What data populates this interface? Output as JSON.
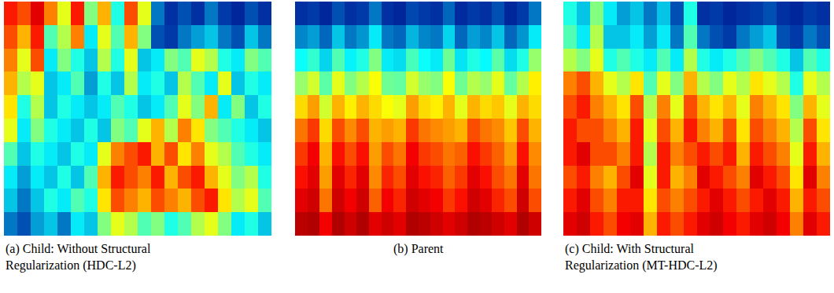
{
  "chart_data": [
    {
      "type": "heatmap",
      "title": "(a) Child: Without Structural Regularization (HDC-L2)",
      "tick_labels": false,
      "color": "Jet",
      "zlim": [
        0,
        1
      ],
      "cells": [
        [
          0.85,
          0.8,
          0.9,
          0.75,
          0.6,
          0.85,
          0.5,
          0.7,
          0.4,
          0.8,
          0.6,
          0.2,
          0.1,
          0.15,
          0.1,
          0.2,
          0.12,
          0.08,
          0.15,
          0.1
        ],
        [
          0.8,
          0.7,
          0.85,
          0.45,
          0.55,
          0.75,
          0.35,
          0.6,
          0.45,
          0.7,
          0.5,
          0.15,
          0.12,
          0.2,
          0.25,
          0.3,
          0.2,
          0.15,
          0.3,
          0.2
        ],
        [
          0.75,
          0.6,
          0.8,
          0.35,
          0.5,
          0.4,
          0.3,
          0.55,
          0.4,
          0.6,
          0.3,
          0.35,
          0.5,
          0.45,
          0.6,
          0.55,
          0.4,
          0.35,
          0.5,
          0.45
        ],
        [
          0.7,
          0.55,
          0.6,
          0.3,
          0.35,
          0.45,
          0.25,
          0.4,
          0.3,
          0.55,
          0.35,
          0.4,
          0.3,
          0.55,
          0.45,
          0.35,
          0.6,
          0.3,
          0.4,
          0.35
        ],
        [
          0.65,
          0.4,
          0.55,
          0.3,
          0.4,
          0.35,
          0.3,
          0.35,
          0.45,
          0.4,
          0.3,
          0.35,
          0.45,
          0.6,
          0.5,
          0.7,
          0.35,
          0.5,
          0.3,
          0.4
        ],
        [
          0.6,
          0.35,
          0.5,
          0.4,
          0.35,
          0.3,
          0.4,
          0.3,
          0.5,
          0.45,
          0.6,
          0.7,
          0.55,
          0.75,
          0.65,
          0.5,
          0.45,
          0.4,
          0.35,
          0.3
        ],
        [
          0.45,
          0.3,
          0.4,
          0.35,
          0.3,
          0.4,
          0.35,
          0.6,
          0.75,
          0.8,
          0.85,
          0.7,
          0.8,
          0.65,
          0.75,
          0.6,
          0.55,
          0.45,
          0.4,
          0.35
        ],
        [
          0.35,
          0.25,
          0.35,
          0.3,
          0.4,
          0.3,
          0.45,
          0.7,
          0.85,
          0.8,
          0.75,
          0.85,
          0.7,
          0.8,
          0.85,
          0.7,
          0.6,
          0.5,
          0.55,
          0.4
        ],
        [
          0.3,
          0.2,
          0.3,
          0.4,
          0.35,
          0.45,
          0.4,
          0.65,
          0.8,
          0.75,
          0.7,
          0.8,
          0.75,
          0.7,
          0.8,
          0.85,
          0.65,
          0.55,
          0.6,
          0.45
        ],
        [
          0.2,
          0.15,
          0.25,
          0.3,
          0.2,
          0.35,
          0.3,
          0.5,
          0.6,
          0.55,
          0.45,
          0.5,
          0.4,
          0.45,
          0.55,
          0.6,
          0.5,
          0.35,
          0.4,
          0.3
        ]
      ]
    },
    {
      "type": "heatmap",
      "title": "(b) Parent",
      "tick_labels": false,
      "color": "Jet",
      "zlim": [
        0,
        1
      ],
      "cells": [
        [
          0.1,
          0.12,
          0.08,
          0.15,
          0.1,
          0.12,
          0.2,
          0.1,
          0.08,
          0.14,
          0.12,
          0.1,
          0.18,
          0.09,
          0.12,
          0.1,
          0.15,
          0.08,
          0.12,
          0.2
        ],
        [
          0.22,
          0.25,
          0.18,
          0.3,
          0.2,
          0.24,
          0.35,
          0.2,
          0.18,
          0.28,
          0.22,
          0.2,
          0.32,
          0.18,
          0.25,
          0.22,
          0.3,
          0.18,
          0.24,
          0.35
        ],
        [
          0.38,
          0.42,
          0.32,
          0.45,
          0.36,
          0.4,
          0.5,
          0.35,
          0.33,
          0.44,
          0.38,
          0.35,
          0.48,
          0.34,
          0.4,
          0.37,
          0.46,
          0.33,
          0.4,
          0.52
        ],
        [
          0.52,
          0.58,
          0.46,
          0.6,
          0.5,
          0.55,
          0.62,
          0.48,
          0.47,
          0.58,
          0.52,
          0.5,
          0.62,
          0.48,
          0.55,
          0.52,
          0.6,
          0.47,
          0.55,
          0.64
        ],
        [
          0.66,
          0.72,
          0.58,
          0.7,
          0.64,
          0.7,
          0.66,
          0.62,
          0.6,
          0.72,
          0.66,
          0.64,
          0.7,
          0.6,
          0.7,
          0.66,
          0.68,
          0.6,
          0.7,
          0.66
        ],
        [
          0.76,
          0.82,
          0.66,
          0.8,
          0.74,
          0.8,
          0.7,
          0.72,
          0.7,
          0.82,
          0.76,
          0.74,
          0.72,
          0.7,
          0.8,
          0.76,
          0.74,
          0.68,
          0.8,
          0.7
        ],
        [
          0.82,
          0.88,
          0.7,
          0.86,
          0.8,
          0.86,
          0.72,
          0.8,
          0.76,
          0.88,
          0.82,
          0.8,
          0.76,
          0.78,
          0.86,
          0.82,
          0.78,
          0.72,
          0.86,
          0.74
        ],
        [
          0.86,
          0.9,
          0.72,
          0.9,
          0.84,
          0.9,
          0.74,
          0.84,
          0.8,
          0.9,
          0.86,
          0.84,
          0.78,
          0.82,
          0.9,
          0.86,
          0.8,
          0.76,
          0.9,
          0.76
        ],
        [
          0.9,
          0.92,
          0.76,
          0.92,
          0.88,
          0.92,
          0.78,
          0.88,
          0.84,
          0.92,
          0.9,
          0.88,
          0.82,
          0.86,
          0.92,
          0.9,
          0.84,
          0.8,
          0.92,
          0.8
        ],
        [
          0.94,
          0.95,
          0.88,
          0.95,
          0.92,
          0.95,
          0.9,
          0.92,
          0.9,
          0.95,
          0.94,
          0.92,
          0.9,
          0.92,
          0.95,
          0.94,
          0.92,
          0.9,
          0.95,
          0.92
        ]
      ]
    },
    {
      "type": "heatmap",
      "title": "(c) Child: With Structural Regularization (MT-HDC-L2)",
      "tick_labels": false,
      "color": "Jet",
      "zlim": [
        0,
        1
      ],
      "cells": [
        [
          0.4,
          0.3,
          0.5,
          0.35,
          0.25,
          0.3,
          0.2,
          0.3,
          0.15,
          0.4,
          0.1,
          0.12,
          0.08,
          0.1,
          0.12,
          0.15,
          0.1,
          0.08,
          0.12,
          0.1
        ],
        [
          0.45,
          0.35,
          0.55,
          0.3,
          0.3,
          0.35,
          0.25,
          0.35,
          0.2,
          0.45,
          0.2,
          0.15,
          0.12,
          0.2,
          0.25,
          0.3,
          0.15,
          0.12,
          0.2,
          0.15
        ],
        [
          0.55,
          0.5,
          0.6,
          0.4,
          0.45,
          0.4,
          0.35,
          0.45,
          0.35,
          0.55,
          0.4,
          0.35,
          0.4,
          0.45,
          0.5,
          0.45,
          0.4,
          0.3,
          0.45,
          0.4
        ],
        [
          0.75,
          0.8,
          0.7,
          0.6,
          0.55,
          0.65,
          0.45,
          0.6,
          0.5,
          0.7,
          0.55,
          0.5,
          0.6,
          0.55,
          0.65,
          0.6,
          0.55,
          0.4,
          0.6,
          0.55
        ],
        [
          0.8,
          0.85,
          0.75,
          0.7,
          0.65,
          0.8,
          0.55,
          0.75,
          0.6,
          0.8,
          0.7,
          0.65,
          0.7,
          0.6,
          0.75,
          0.7,
          0.65,
          0.5,
          0.7,
          0.6
        ],
        [
          0.85,
          0.8,
          0.8,
          0.75,
          0.7,
          0.85,
          0.6,
          0.8,
          0.7,
          0.85,
          0.75,
          0.7,
          0.8,
          0.65,
          0.8,
          0.75,
          0.7,
          0.55,
          0.8,
          0.65
        ],
        [
          0.85,
          0.9,
          0.8,
          0.8,
          0.75,
          0.85,
          0.55,
          0.85,
          0.75,
          0.8,
          0.85,
          0.8,
          0.85,
          0.7,
          0.85,
          0.8,
          0.75,
          0.6,
          0.85,
          0.7
        ],
        [
          0.8,
          0.85,
          0.75,
          0.7,
          0.8,
          0.9,
          0.6,
          0.85,
          0.7,
          0.75,
          0.9,
          0.85,
          0.8,
          0.75,
          0.9,
          0.85,
          0.8,
          0.65,
          0.9,
          0.75
        ],
        [
          0.85,
          0.9,
          0.8,
          0.75,
          0.85,
          0.85,
          0.65,
          0.8,
          0.75,
          0.8,
          0.85,
          0.9,
          0.85,
          0.8,
          0.85,
          0.9,
          0.85,
          0.7,
          0.85,
          0.8
        ],
        [
          0.9,
          0.92,
          0.85,
          0.8,
          0.88,
          0.9,
          0.7,
          0.85,
          0.8,
          0.85,
          0.9,
          0.92,
          0.88,
          0.85,
          0.9,
          0.92,
          0.88,
          0.75,
          0.9,
          0.85
        ]
      ]
    }
  ]
}
